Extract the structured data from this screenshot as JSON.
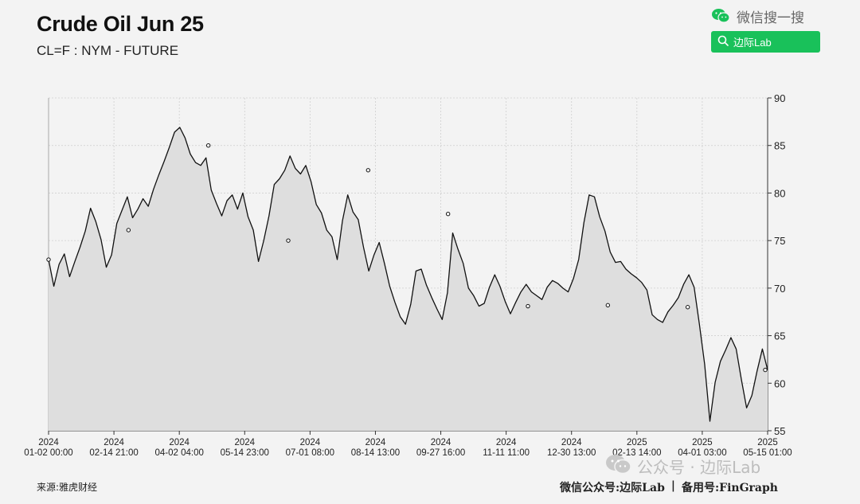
{
  "header": {
    "title": "Crude Oil Jun 25",
    "subtitle": "CL=F : NYM - FUTURE"
  },
  "wechat": {
    "search_label": "微信搜一搜",
    "search_button": "边际Lab",
    "icon": "wechat-icon",
    "search_icon": "search-icon"
  },
  "footer": {
    "source": "来源:雅虎财经",
    "watermark": "公众号 · 边际Lab",
    "account": "微信公众号:边际Lab",
    "divider": "|",
    "backup": "备用号:FinGraph"
  },
  "chart_data": {
    "type": "area",
    "title": "Crude Oil Jun 25",
    "subtitle": "CL=F : NYM - FUTURE",
    "xlabel": "",
    "ylabel": "",
    "ylim": [
      55,
      90
    ],
    "y_ticks": [
      90,
      85,
      80,
      75,
      70,
      65,
      60,
      55
    ],
    "y_axis_side": "right",
    "grid": true,
    "x_ticks": [
      {
        "year": "2024",
        "date": "01-02 00:00"
      },
      {
        "year": "2024",
        "date": "02-14 21:00"
      },
      {
        "year": "2024",
        "date": "04-02 04:00"
      },
      {
        "year": "2024",
        "date": "05-14 23:00"
      },
      {
        "year": "2024",
        "date": "07-01 08:00"
      },
      {
        "year": "2024",
        "date": "08-14 13:00"
      },
      {
        "year": "2024",
        "date": "09-27 16:00"
      },
      {
        "year": "2024",
        "date": "11-11 11:00"
      },
      {
        "year": "2024",
        "date": "12-30 13:00"
      },
      {
        "year": "2025",
        "date": "02-13 14:00"
      },
      {
        "year": "2025",
        "date": "04-01 03:00"
      },
      {
        "year": "2025",
        "date": "05-15 01:00"
      }
    ],
    "series": [
      {
        "color": "#111111",
        "fill": "#dedede",
        "values": [
          73.0,
          70.2,
          72.5,
          73.6,
          71.2,
          72.8,
          74.3,
          76.0,
          78.4,
          77.0,
          75.1,
          72.2,
          73.5,
          76.8,
          78.2,
          79.6,
          77.4,
          78.3,
          79.4,
          78.6,
          80.4,
          81.9,
          83.3,
          84.8,
          86.4,
          86.9,
          85.8,
          84.1,
          83.2,
          82.9,
          83.7,
          80.3,
          78.9,
          77.6,
          79.2,
          79.8,
          78.3,
          80.0,
          77.5,
          76.1,
          72.8,
          75.0,
          77.6,
          80.9,
          81.5,
          82.4,
          83.9,
          82.6,
          82.0,
          82.9,
          81.2,
          78.8,
          77.9,
          76.1,
          75.4,
          73.0,
          77.1,
          79.8,
          78.0,
          77.2,
          74.3,
          71.8,
          73.5,
          74.8,
          72.6,
          70.2,
          68.5,
          67.0,
          66.2,
          68.3,
          71.8,
          72.0,
          70.3,
          69.0,
          67.8,
          66.7,
          69.5,
          75.8,
          74.1,
          72.6,
          70.0,
          69.2,
          68.1,
          68.4,
          70.1,
          71.4,
          70.2,
          68.6,
          67.3,
          68.5,
          69.6,
          70.4,
          69.6,
          69.2,
          68.8,
          70.1,
          70.8,
          70.5,
          70.0,
          69.6,
          71.0,
          73.0,
          76.9,
          79.8,
          79.6,
          77.5,
          76.0,
          73.8,
          72.7,
          72.8,
          72.0,
          71.5,
          71.1,
          70.6,
          69.8,
          67.2,
          66.7,
          66.4,
          67.5,
          68.2,
          69.0,
          70.4,
          71.4,
          70.1,
          66.2,
          62.0,
          56.0,
          60.1,
          62.3,
          63.5,
          64.8,
          63.6,
          60.4,
          57.4,
          58.7,
          61.3,
          63.6,
          61.4
        ]
      }
    ],
    "markers": [
      73.0,
      76.1,
      85.0,
      75.0,
      82.4,
      77.8,
      68.1,
      68.2,
      68.0,
      61.4
    ]
  }
}
